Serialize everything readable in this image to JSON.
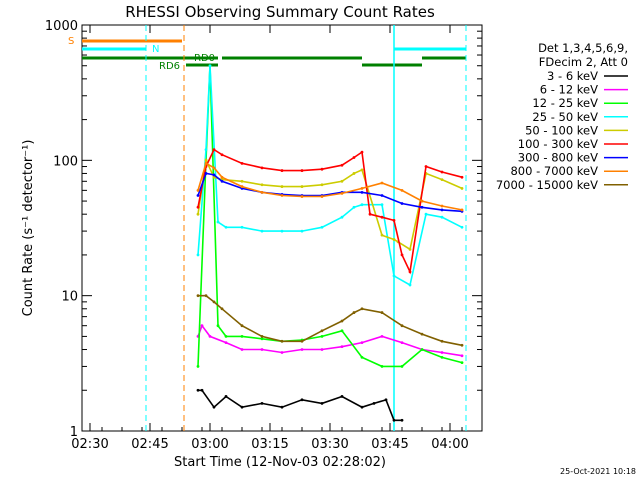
{
  "chart_data": {
    "type": "line",
    "title": "RHESSI Observing Summary Count Rates",
    "xlabel": "Start Time (12-Nov-03 02:28:02)",
    "ylabel": "Count Rate (s⁻¹ detector⁻¹)",
    "yscale": "log",
    "ylim": [
      1,
      1000
    ],
    "xlim_minutes": [
      0,
      100
    ],
    "x_ticks": [
      "02:30",
      "02:45",
      "03:00",
      "03:15",
      "03:30",
      "03:45",
      "04:00"
    ],
    "x_tick_minutes": [
      2,
      17,
      32,
      47,
      62,
      77,
      92
    ],
    "y_ticks": [
      "1",
      "10",
      "100",
      "1000"
    ],
    "y_tick_values": [
      1,
      10,
      100,
      1000
    ],
    "legend_header": [
      "Det 1,3,4,5,6,9,",
      "FDecim 2, Att 0"
    ],
    "legend_position": "right",
    "series": [
      {
        "name": "3 - 6 keV",
        "color": "#000000",
        "x": [
          29,
          30,
          33,
          36,
          40,
          45,
          50,
          55,
          60,
          65,
          70,
          73,
          76,
          78,
          80
        ],
        "values": [
          2,
          2,
          1.5,
          1.8,
          1.5,
          1.6,
          1.5,
          1.7,
          1.6,
          1.8,
          1.5,
          1.6,
          1.7,
          1.2,
          1.2
        ]
      },
      {
        "name": "6 - 12 keV",
        "color": "#ff00ff",
        "x": [
          29,
          30,
          32,
          36,
          40,
          45,
          50,
          55,
          60,
          65,
          70,
          75,
          80,
          85,
          90,
          95
        ],
        "values": [
          5,
          6,
          5,
          4.5,
          4,
          4,
          3.8,
          4,
          4,
          4.2,
          4.5,
          5,
          4.5,
          4,
          3.8,
          3.6
        ]
      },
      {
        "name": "12 - 25 keV",
        "color": "#00ff00",
        "x": [
          29,
          31,
          32,
          34,
          36,
          40,
          45,
          50,
          55,
          60,
          65,
          70,
          75,
          80,
          85,
          90,
          95
        ],
        "values": [
          3,
          100,
          500,
          6,
          5,
          5,
          4.8,
          4.6,
          4.7,
          5,
          5.5,
          3.5,
          3,
          3,
          4,
          3.5,
          3.2
        ]
      },
      {
        "name": "25 - 50 keV",
        "color": "#00ffff",
        "x": [
          29,
          31,
          32,
          34,
          36,
          40,
          45,
          50,
          55,
          60,
          65,
          68,
          70,
          75,
          78,
          82,
          86,
          90,
          95
        ],
        "values": [
          20,
          120,
          500,
          35,
          32,
          32,
          30,
          30,
          30,
          32,
          38,
          45,
          47,
          47,
          14,
          12,
          40,
          38,
          32
        ]
      },
      {
        "name": "50 - 100 keV",
        "color": "#cccc00",
        "x": [
          29,
          31,
          33,
          35,
          40,
          45,
          50,
          55,
          60,
          65,
          68,
          70,
          75,
          78,
          79,
          82,
          86,
          90,
          95
        ],
        "values": [
          40,
          100,
          75,
          72,
          70,
          66,
          64,
          64,
          66,
          70,
          80,
          85,
          28,
          26,
          25,
          22,
          80,
          72,
          62
        ]
      },
      {
        "name": "100 - 300 keV",
        "color": "#ff0000",
        "x": [
          29,
          31,
          33,
          35,
          40,
          45,
          50,
          55,
          60,
          65,
          68,
          70,
          72,
          75,
          78,
          80,
          82,
          86,
          90,
          95
        ],
        "values": [
          45,
          90,
          120,
          110,
          95,
          88,
          84,
          84,
          86,
          92,
          105,
          115,
          40,
          38,
          36,
          20,
          15,
          90,
          82,
          75
        ]
      },
      {
        "name": "300 - 800 keV",
        "color": "#0000ff",
        "x": [
          29,
          31,
          33,
          35,
          40,
          45,
          50,
          55,
          60,
          65,
          70,
          75,
          80,
          85,
          90,
          95
        ],
        "values": [
          55,
          80,
          78,
          70,
          62,
          58,
          56,
          55,
          55,
          58,
          58,
          55,
          48,
          45,
          43,
          42
        ]
      },
      {
        "name": "800 - 7000 keV",
        "color": "#ff8000",
        "x": [
          29,
          31,
          33,
          35,
          40,
          45,
          50,
          55,
          60,
          65,
          70,
          75,
          80,
          85,
          90,
          95
        ],
        "values": [
          60,
          95,
          88,
          75,
          64,
          58,
          55,
          54,
          54,
          57,
          62,
          68,
          60,
          50,
          46,
          43
        ]
      },
      {
        "name": "7000 - 15000 keV",
        "color": "#806000",
        "x": [
          29,
          31,
          33,
          35,
          40,
          45,
          50,
          55,
          60,
          65,
          68,
          70,
          75,
          80,
          85,
          90,
          95
        ],
        "values": [
          10,
          10,
          9,
          8,
          6,
          5,
          4.6,
          4.6,
          5.5,
          6.5,
          7.5,
          8,
          7.5,
          6,
          5.2,
          4.6,
          4.3
        ]
      }
    ],
    "annotations": [
      "S",
      "N",
      "RD0",
      "RD6"
    ],
    "timestamp": "25-Oct-2021 10:18"
  }
}
